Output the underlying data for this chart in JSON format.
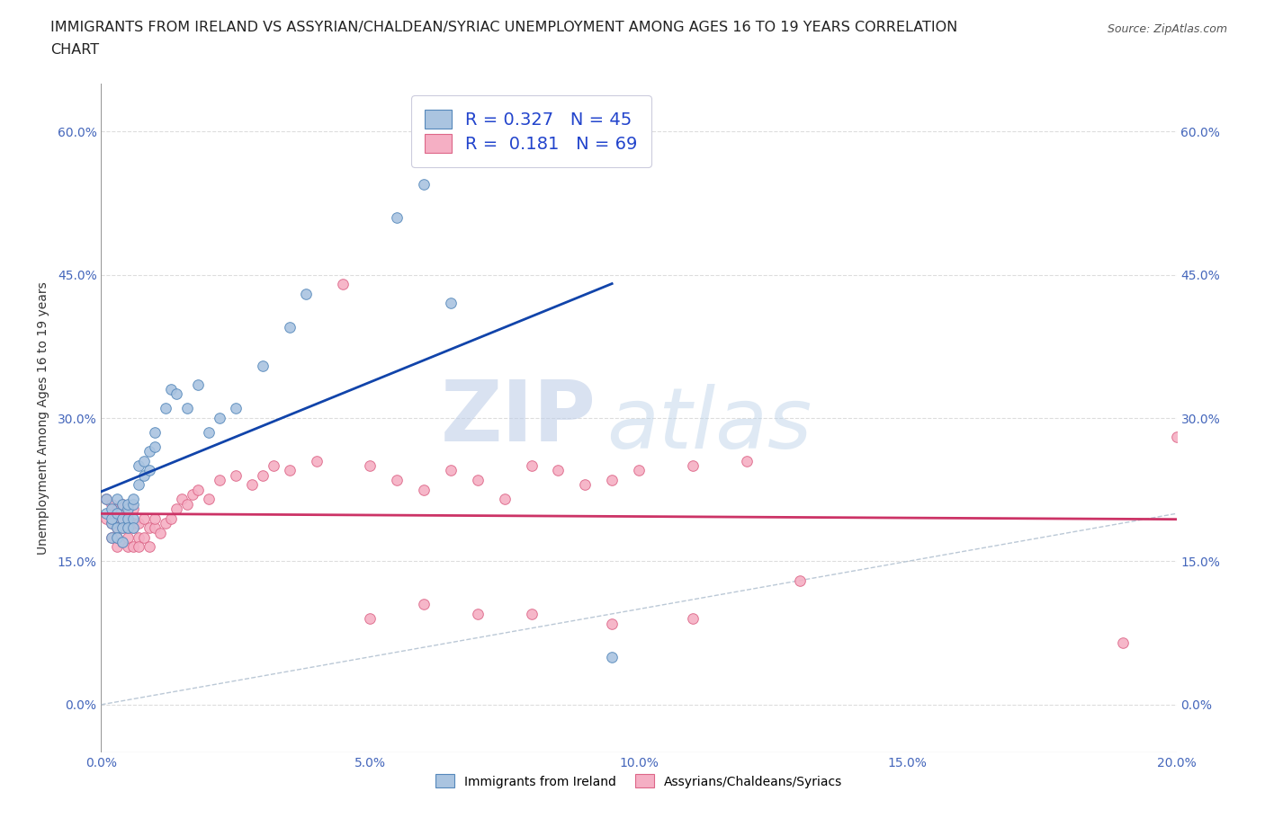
{
  "title_line1": "IMMIGRANTS FROM IRELAND VS ASSYRIAN/CHALDEAN/SYRIAC UNEMPLOYMENT AMONG AGES 16 TO 19 YEARS CORRELATION",
  "title_line2": "CHART",
  "source": "Source: ZipAtlas.com",
  "ylabel": "Unemployment Among Ages 16 to 19 years",
  "xlim": [
    0.0,
    0.2
  ],
  "ylim": [
    -0.05,
    0.65
  ],
  "xticks": [
    0.0,
    0.05,
    0.1,
    0.15,
    0.2
  ],
  "xticklabels": [
    "0.0%",
    "5.0%",
    "10.0%",
    "15.0%",
    "20.0%"
  ],
  "yticks": [
    0.0,
    0.15,
    0.3,
    0.45,
    0.6
  ],
  "yticklabels": [
    "0.0%",
    "15.0%",
    "30.0%",
    "45.0%",
    "60.0%"
  ],
  "ireland_color": "#aac4e0",
  "assyrian_color": "#f5afc4",
  "ireland_edge": "#5588bb",
  "assyrian_edge": "#dd6688",
  "ireland_trendline_color": "#1144aa",
  "assyrian_trendline_color": "#cc3366",
  "diagonal_color": "#aabbcc",
  "R_ireland": 0.327,
  "N_ireland": 45,
  "R_assyrian": 0.181,
  "N_assyrian": 69,
  "ireland_x": [
    0.001,
    0.001,
    0.002,
    0.002,
    0.002,
    0.002,
    0.003,
    0.003,
    0.003,
    0.003,
    0.004,
    0.004,
    0.004,
    0.004,
    0.005,
    0.005,
    0.005,
    0.005,
    0.006,
    0.006,
    0.006,
    0.006,
    0.007,
    0.007,
    0.008,
    0.008,
    0.009,
    0.009,
    0.01,
    0.01,
    0.012,
    0.013,
    0.014,
    0.016,
    0.018,
    0.02,
    0.022,
    0.025,
    0.03,
    0.035,
    0.038,
    0.055,
    0.06,
    0.065,
    0.095
  ],
  "ireland_y": [
    0.2,
    0.215,
    0.19,
    0.205,
    0.175,
    0.195,
    0.2,
    0.185,
    0.215,
    0.175,
    0.21,
    0.195,
    0.185,
    0.17,
    0.205,
    0.195,
    0.185,
    0.21,
    0.21,
    0.195,
    0.215,
    0.185,
    0.25,
    0.23,
    0.24,
    0.255,
    0.245,
    0.265,
    0.27,
    0.285,
    0.31,
    0.33,
    0.325,
    0.31,
    0.335,
    0.285,
    0.3,
    0.31,
    0.355,
    0.395,
    0.43,
    0.51,
    0.545,
    0.42,
    0.05
  ],
  "assyrian_x": [
    0.001,
    0.001,
    0.002,
    0.002,
    0.002,
    0.003,
    0.003,
    0.003,
    0.003,
    0.004,
    0.004,
    0.004,
    0.004,
    0.005,
    0.005,
    0.005,
    0.005,
    0.006,
    0.006,
    0.006,
    0.006,
    0.007,
    0.007,
    0.007,
    0.008,
    0.008,
    0.009,
    0.009,
    0.01,
    0.01,
    0.011,
    0.012,
    0.013,
    0.014,
    0.015,
    0.016,
    0.017,
    0.018,
    0.02,
    0.022,
    0.025,
    0.028,
    0.03,
    0.032,
    0.035,
    0.04,
    0.045,
    0.05,
    0.055,
    0.06,
    0.065,
    0.07,
    0.075,
    0.08,
    0.085,
    0.09,
    0.095,
    0.1,
    0.11,
    0.12,
    0.05,
    0.06,
    0.07,
    0.08,
    0.095,
    0.11,
    0.13,
    0.19,
    0.2
  ],
  "assyrian_y": [
    0.215,
    0.195,
    0.21,
    0.19,
    0.175,
    0.205,
    0.185,
    0.165,
    0.175,
    0.21,
    0.185,
    0.195,
    0.17,
    0.2,
    0.185,
    0.165,
    0.175,
    0.205,
    0.185,
    0.165,
    0.19,
    0.175,
    0.165,
    0.19,
    0.175,
    0.195,
    0.185,
    0.165,
    0.185,
    0.195,
    0.18,
    0.19,
    0.195,
    0.205,
    0.215,
    0.21,
    0.22,
    0.225,
    0.215,
    0.235,
    0.24,
    0.23,
    0.24,
    0.25,
    0.245,
    0.255,
    0.44,
    0.25,
    0.235,
    0.225,
    0.245,
    0.235,
    0.215,
    0.25,
    0.245,
    0.23,
    0.235,
    0.245,
    0.25,
    0.255,
    0.09,
    0.105,
    0.095,
    0.095,
    0.085,
    0.09,
    0.13,
    0.065,
    0.28
  ],
  "watermark_zip": "ZIP",
  "watermark_atlas": "atlas",
  "background_color": "#ffffff",
  "grid_color": "#dddddd",
  "legend_fontsize": 14,
  "title_fontsize": 11.5,
  "axis_label_fontsize": 10,
  "tick_fontsize": 10
}
